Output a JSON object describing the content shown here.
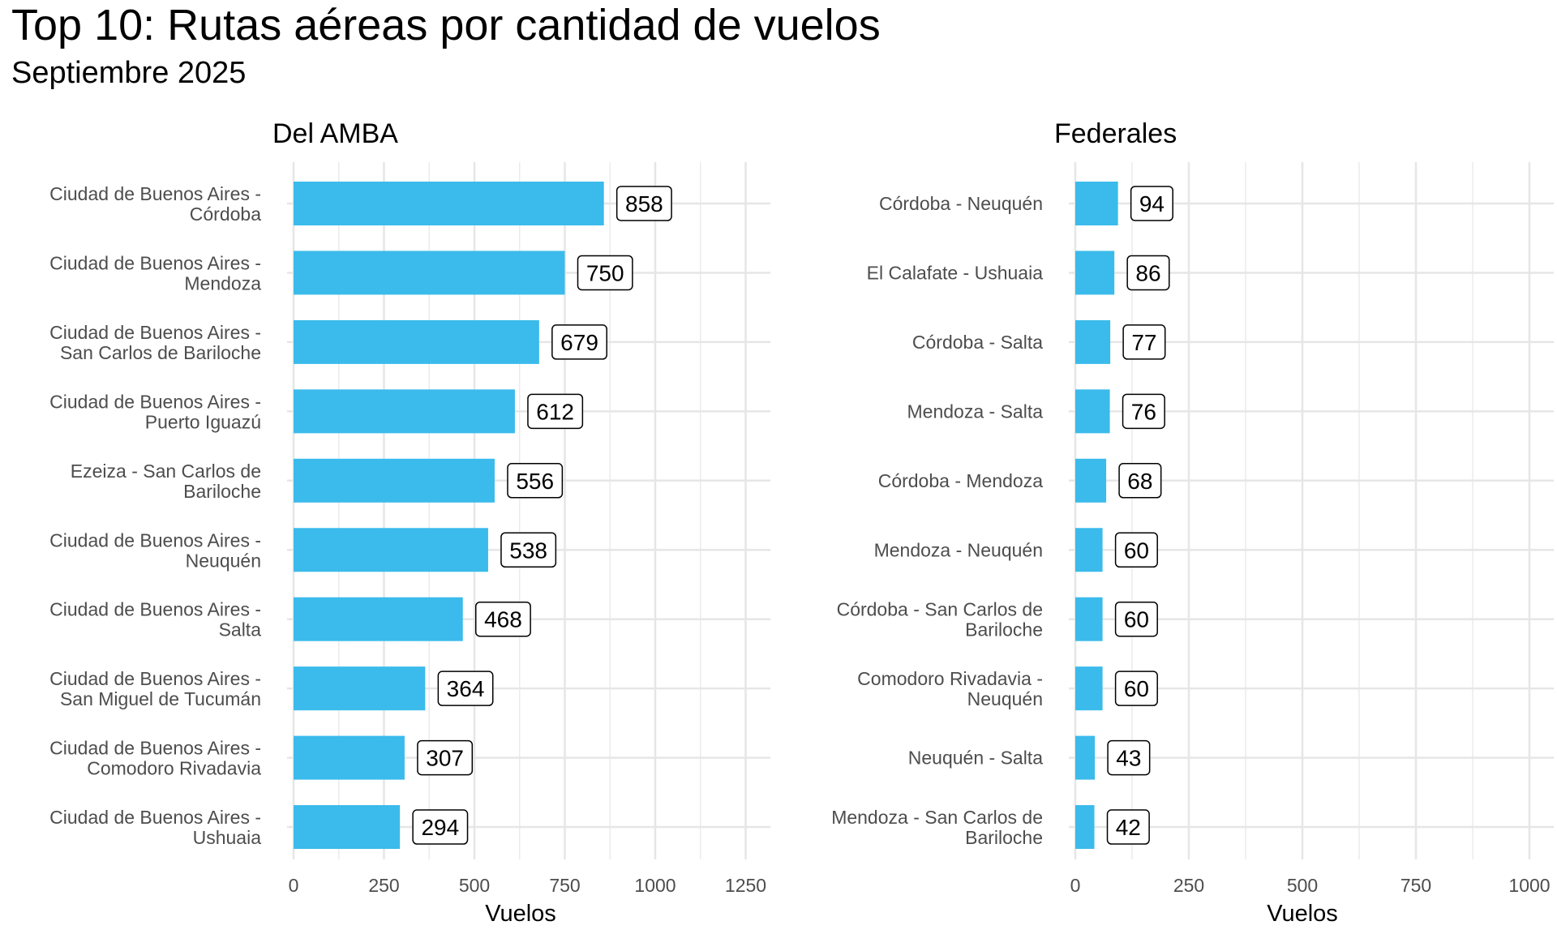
{
  "title": "Top 10: Rutas aéreas por cantidad de vuelos",
  "subtitle": "Septiembre 2025",
  "chart_data": [
    {
      "type": "bar",
      "orientation": "horizontal",
      "title": "Del AMBA",
      "xlabel": "Vuelos",
      "ylabel": "",
      "xlim": [
        0,
        1300
      ],
      "xticks": [
        0,
        250,
        500,
        750,
        1000,
        1250
      ],
      "grid": true,
      "bar_color": "#3ABBEB",
      "categories": [
        [
          "Ciudad de Buenos Aires -",
          "Córdoba"
        ],
        [
          "Ciudad de Buenos Aires -",
          "Mendoza"
        ],
        [
          "Ciudad de Buenos Aires -",
          "San Carlos de Bariloche"
        ],
        [
          "Ciudad de Buenos Aires -",
          "Puerto Iguazú"
        ],
        [
          "Ezeiza - San Carlos de",
          "Bariloche"
        ],
        [
          "Ciudad de Buenos Aires -",
          "Neuquén"
        ],
        [
          "Ciudad de Buenos Aires -",
          "Salta"
        ],
        [
          "Ciudad de Buenos Aires -",
          "San Miguel de Tucumán"
        ],
        [
          "Ciudad de Buenos Aires -",
          "Comodoro Rivadavia"
        ],
        [
          "Ciudad de Buenos Aires -",
          "Ushuaia"
        ]
      ],
      "values": [
        858,
        750,
        679,
        612,
        556,
        538,
        468,
        364,
        307,
        294
      ]
    },
    {
      "type": "bar",
      "orientation": "horizontal",
      "title": "Federales",
      "xlabel": "Vuelos",
      "ylabel": "",
      "xlim": [
        0,
        1050
      ],
      "xticks": [
        0,
        250,
        500,
        750,
        1000
      ],
      "grid": true,
      "bar_color": "#3ABBEB",
      "categories": [
        [
          "Córdoba - Neuquén"
        ],
        [
          "El Calafate - Ushuaia"
        ],
        [
          "Córdoba - Salta"
        ],
        [
          "Mendoza - Salta"
        ],
        [
          "Córdoba - Mendoza"
        ],
        [
          "Mendoza - Neuquén"
        ],
        [
          "Córdoba - San Carlos de",
          "Bariloche"
        ],
        [
          "Comodoro Rivadavia -",
          "Neuquén"
        ],
        [
          "Neuquén - Salta"
        ],
        [
          "Mendoza - San Carlos de",
          "Bariloche"
        ]
      ],
      "values": [
        94,
        86,
        77,
        76,
        68,
        60,
        60,
        60,
        43,
        42
      ]
    }
  ]
}
